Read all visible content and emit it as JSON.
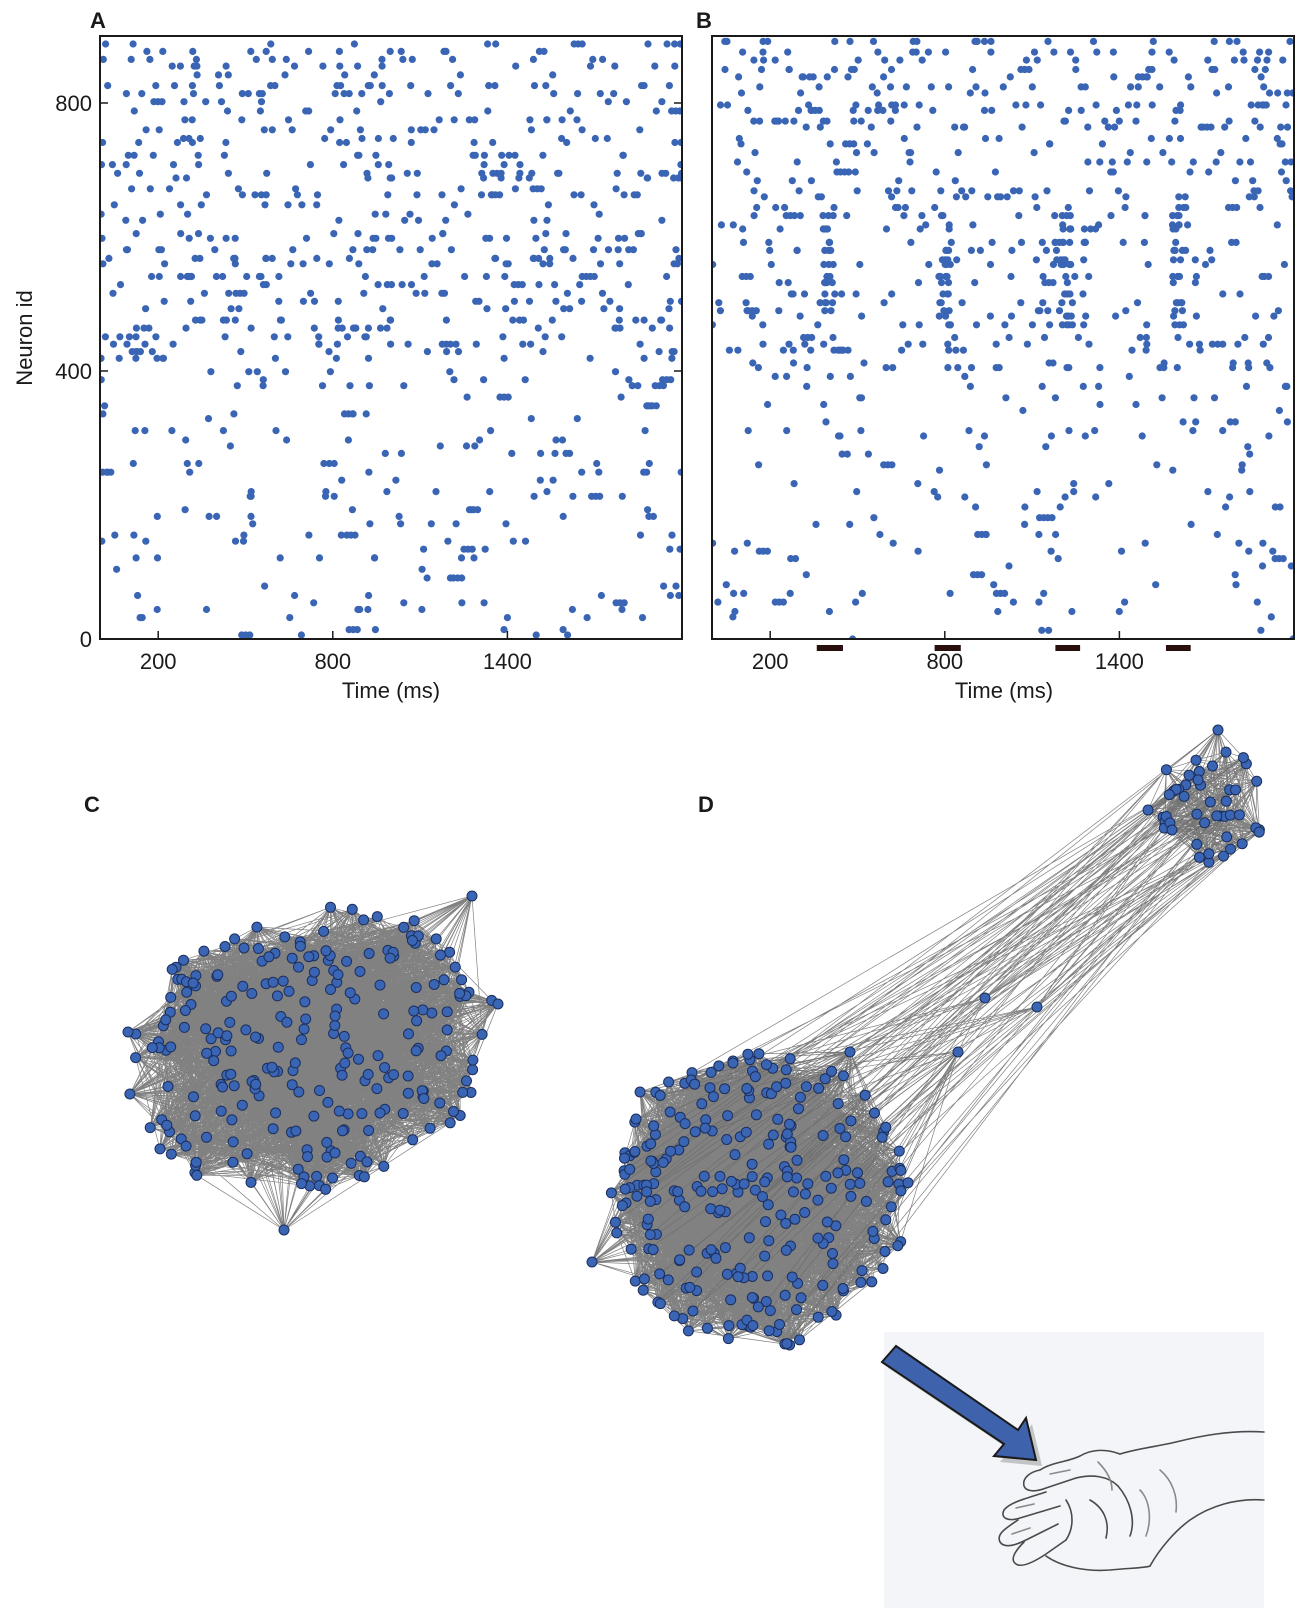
{
  "panels": {
    "A": {
      "letter": "A"
    },
    "B": {
      "letter": "B"
    },
    "C": {
      "letter": "C"
    },
    "D": {
      "letter": "D"
    }
  },
  "colors": {
    "spike": "#3a65b5",
    "node": "#3a65b5",
    "node_outline": "#1c2f5c",
    "edge": "#6b6b6b",
    "stim_bar": "#2a0f0f",
    "axis": "#1a1a1a",
    "arrow": "#3f62ad",
    "sketch_bg": "#f2f4f7"
  },
  "chart_data": [
    {
      "panel": "A",
      "type": "scatter",
      "title": "",
      "xlabel": "Time (ms)",
      "ylabel": "Neuron id",
      "xlim": [
        0,
        2000
      ],
      "ylim": [
        0,
        900
      ],
      "xticks": [
        200,
        800,
        1400
      ],
      "yticks": [
        0,
        400,
        800
      ],
      "grid": false,
      "note_points": "approximate raster: dense bands 400-900, sparse 0-400"
    },
    {
      "panel": "B",
      "type": "scatter",
      "title": "",
      "xlabel": "Time (ms)",
      "ylabel": "",
      "xlim": [
        0,
        2000
      ],
      "ylim": [
        0,
        900
      ],
      "xticks": [
        200,
        800,
        1400
      ],
      "yticks": [],
      "grid": false,
      "stimulus_windows_ms": [
        [
          360,
          450
        ],
        [
          765,
          855
        ],
        [
          1180,
          1265
        ],
        [
          1560,
          1645
        ]
      ],
      "burst_times_ms": [
        400,
        800,
        1220,
        1600
      ]
    }
  ],
  "networks": {
    "C": {
      "nodes": 240,
      "clusters": 1
    },
    "D": {
      "nodes_main": 260,
      "nodes_satellite": 45,
      "clusters": 2
    }
  },
  "icons": {
    "arrow": "stimulus-arrow-icon",
    "hand": "hand-sketch-icon"
  }
}
